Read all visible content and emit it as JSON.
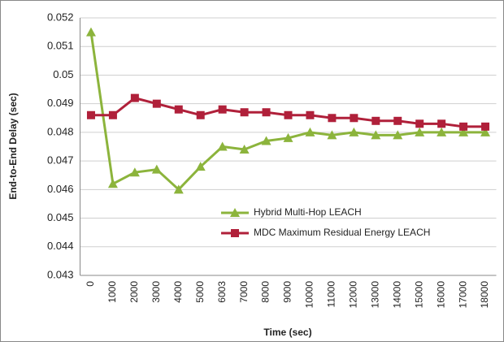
{
  "chart_data": {
    "type": "line",
    "x_label": "Time (sec)",
    "y_label": "End-to-End Delay (sec)",
    "categories": [
      "0",
      "1000",
      "2000",
      "3000",
      "4000",
      "5000",
      "6003",
      "7000",
      "8000",
      "9000",
      "10000",
      "11000",
      "12000",
      "13000",
      "14000",
      "15000",
      "16000",
      "17000",
      "18000"
    ],
    "series": [
      {
        "name": "Hybrid Multi-Hop LEACH",
        "color": "#8cb43c",
        "marker": "triangle",
        "values": [
          0.0515,
          0.0462,
          0.0466,
          0.0467,
          0.046,
          0.0468,
          0.0475,
          0.0474,
          0.0477,
          0.0478,
          0.048,
          0.0479,
          0.048,
          0.0479,
          0.0479,
          0.048,
          0.048,
          0.048,
          0.048
        ]
      },
      {
        "name": "MDC Maximum Residual Energy LEACH",
        "color": "#b0203a",
        "marker": "square",
        "values": [
          0.0486,
          0.0486,
          0.0492,
          0.049,
          0.0488,
          0.0486,
          0.0488,
          0.0487,
          0.0487,
          0.0486,
          0.0486,
          0.0485,
          0.0485,
          0.0484,
          0.0484,
          0.0483,
          0.0483,
          0.0482,
          0.0482
        ]
      }
    ],
    "ylim": [
      0.043,
      0.052
    ],
    "yticks": [
      0.043,
      0.044,
      0.045,
      0.046,
      0.047,
      0.048,
      0.049,
      0.05,
      0.051,
      0.052
    ],
    "grid": true,
    "legend": "lower right"
  }
}
